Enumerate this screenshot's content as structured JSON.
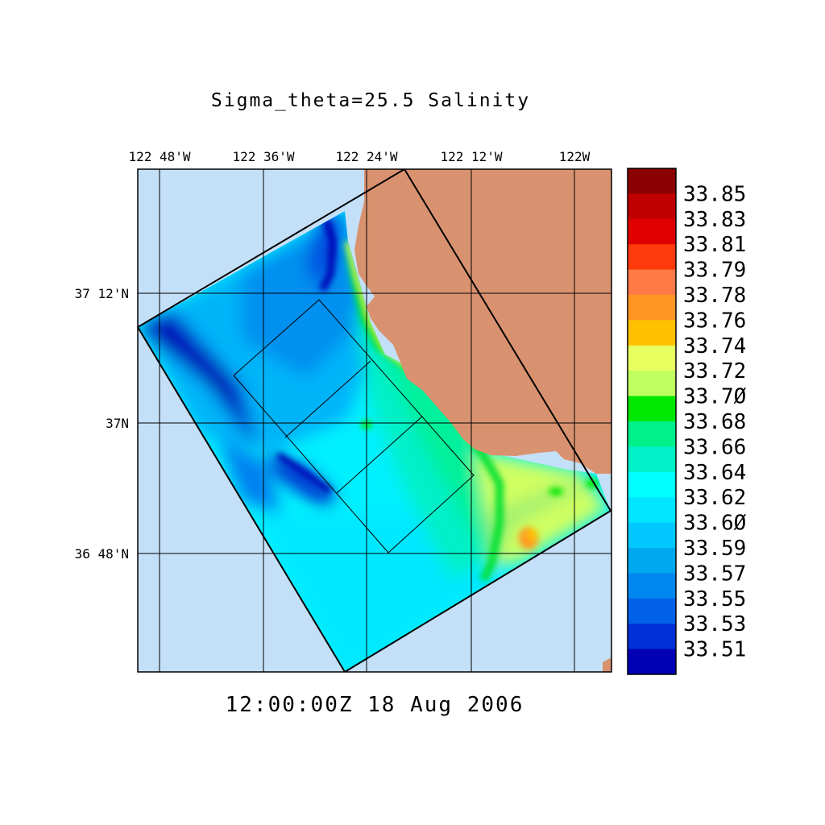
{
  "title": "Sigma_theta=25.5 Salinity",
  "time_label": "12:00:00Z  18 Aug 2006",
  "colors": {
    "ocean": "#c4e0f8",
    "land": "#d9926f",
    "border": "#000000"
  },
  "chart_data": {
    "type": "heatmap",
    "variable": "Salinity",
    "surface": "Sigma_theta=25.5",
    "xlim": [
      -122.9,
      -121.93
    ],
    "ylim": [
      36.66,
      37.38
    ],
    "x_ticks": [
      {
        "value": -122.8,
        "label": "122 48'W"
      },
      {
        "value": -122.6,
        "label": "122 36'W"
      },
      {
        "value": -122.4,
        "label": "122 24'W"
      },
      {
        "value": -122.2,
        "label": "122 12'W"
      },
      {
        "value": -122.0,
        "label": "122W"
      }
    ],
    "y_ticks": [
      {
        "value": 37.2,
        "label": "37 12'N"
      },
      {
        "value": 37.0,
        "label": "37N"
      },
      {
        "value": 36.8,
        "label": "36 48'N"
      }
    ],
    "colorbar": {
      "labels": [
        "33.85",
        "33.83",
        "33.81",
        "33.79",
        "33.78",
        "33.76",
        "33.74",
        "33.72",
        "33.7Ø",
        "33.68",
        "33.66",
        "33.64",
        "33.62",
        "33.6Ø",
        "33.59",
        "33.57",
        "33.55",
        "33.53",
        "33.51"
      ],
      "colors": [
        "#8b0000",
        "#c00000",
        "#e00000",
        "#ff3a0c",
        "#ff7a46",
        "#ff9624",
        "#ffc000",
        "#e8ff60",
        "#c0ff60",
        "#00e800",
        "#00f08a",
        "#00f0c8",
        "#00ffff",
        "#00e6ff",
        "#00c8ff",
        "#00a8f0",
        "#0088f0",
        "#0060e8",
        "#0030d8",
        "#0000b4"
      ]
    }
  }
}
